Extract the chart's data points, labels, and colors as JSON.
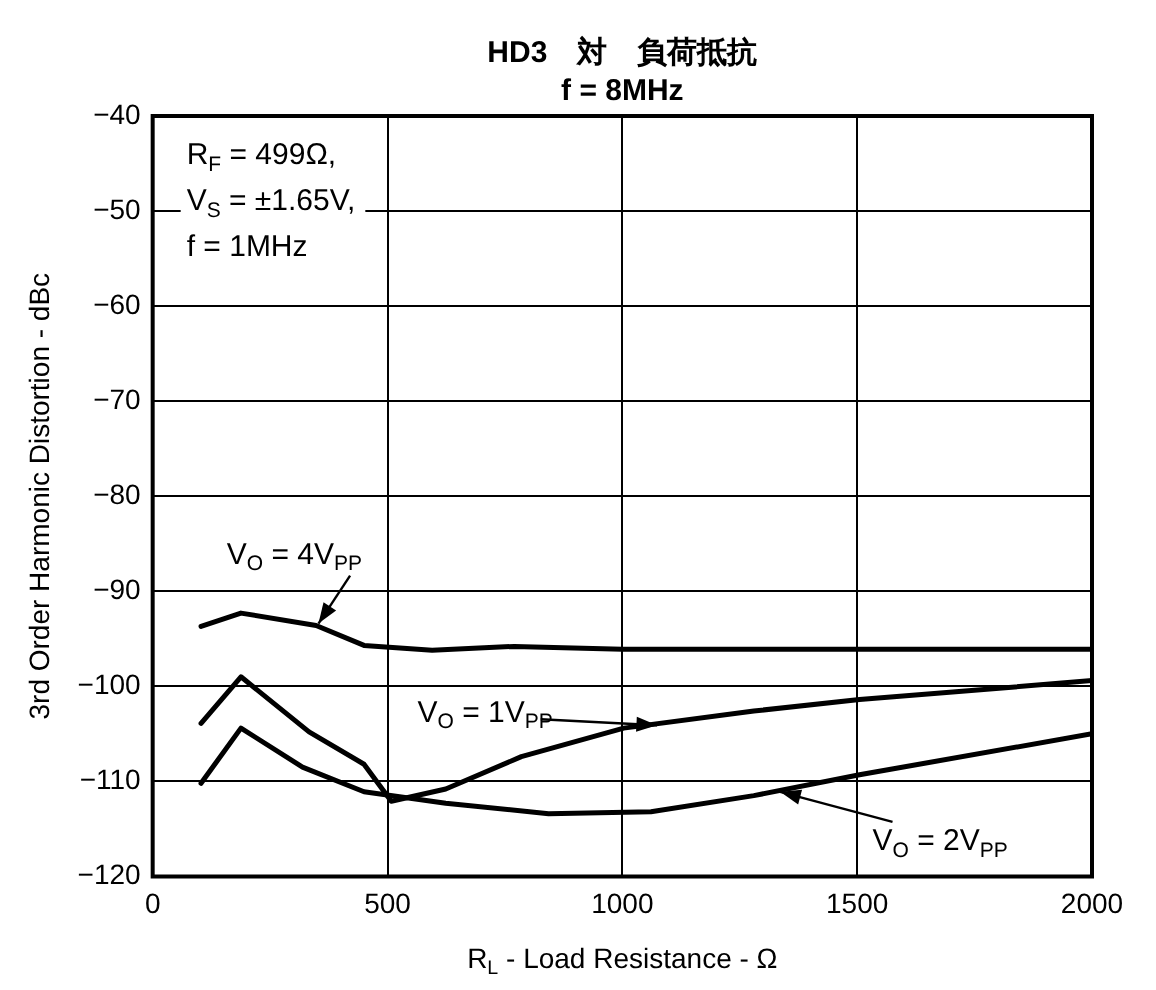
{
  "chart_data": {
    "type": "line",
    "title": "HD3　対　負荷抵抗",
    "subtitle": "f = 8MHz",
    "xlabel": "R$_{L}$ - Load Resistance - Ω",
    "ylabel": "3rd Order Harmonic Distortion - dBc",
    "x": [
      103,
      188,
      348,
      450,
      595,
      770,
      1000,
      1500,
      2000
    ],
    "series": [
      {
        "color": "#000000",
        "values": [
          -93.7,
          -92.3,
          -93.6,
          -95.7,
          -96.2,
          -95.8,
          -96.1,
          -96.1,
          -96.1
        ]
      },
      {
        "color": "#000000",
        "x": [
          103,
          188,
          333,
          450,
          508,
          624,
          785,
          1003,
          1280,
          1505,
          2000
        ],
        "values": [
          -103.9,
          -99.0,
          -104.8,
          -108.2,
          -112.1,
          -110.8,
          -107.4,
          -104.4,
          -102.6,
          -101.4,
          -99.4
        ]
      },
      {
        "color": "#000000",
        "x": [
          103,
          188,
          319,
          450,
          624,
          843,
          1061,
          1280,
          1505,
          2000
        ],
        "values": [
          -110.2,
          -104.4,
          -108.5,
          -111.1,
          -112.3,
          -113.4,
          -113.2,
          -111.5,
          -109.3,
          -105.0
        ]
      }
    ],
    "annotations": [
      "R$_{F}$ = 499Ω,",
      "V$_{S}$ = ±1.65V,",
      "f = 1MHz",
      {
        "text": "V$_{O}$ = 4V$_{PP}$",
        "x": 353,
        "y": -93.4
      },
      {
        "text": "V$_{O}$ = 1V$_{PP}$",
        "x": 1074,
        "y": -104.1
      },
      {
        "text": "V$_{O}$ = 2V$_{PP}$",
        "x": 1336,
        "y": -111.1
      }
    ],
    "xlim": [
      0,
      2000
    ],
    "xticks": [
      0,
      500,
      1000,
      1500,
      2000
    ],
    "ylim": [
      -120,
      -40
    ],
    "yticks": [
      -40,
      -50,
      -60,
      -70,
      -80,
      -90,
      -100,
      -110,
      -120
    ],
    "grid": true,
    "legend": false,
    "marker": "none",
    "line_style": "solid"
  }
}
